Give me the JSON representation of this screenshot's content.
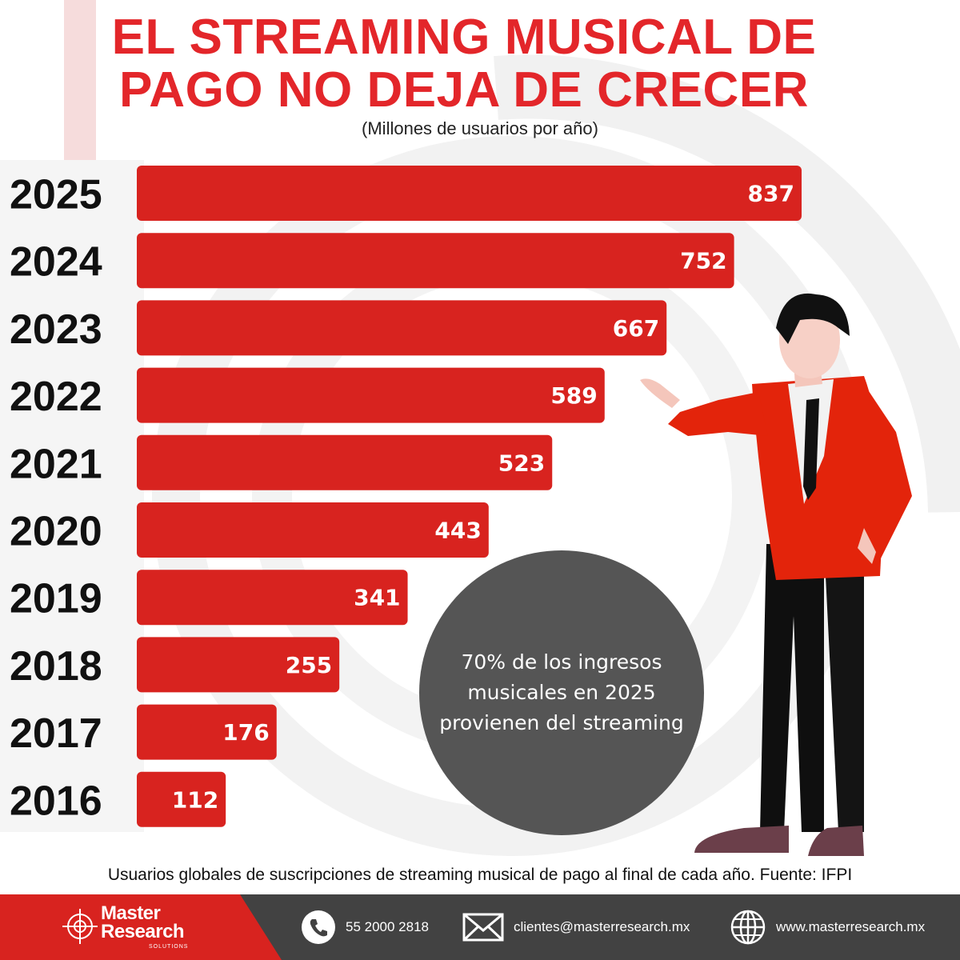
{
  "title_line1": "EL STREAMING MUSICAL DE",
  "title_line2": "PAGO NO DEJA DE CRECER",
  "subtitle": "(Millones de usuarios por año)",
  "chart_data": {
    "type": "bar",
    "orientation": "horizontal",
    "categories": [
      "2025",
      "2024",
      "2023",
      "2022",
      "2021",
      "2020",
      "2019",
      "2018",
      "2017",
      "2016"
    ],
    "values": [
      837,
      752,
      667,
      589,
      523,
      443,
      341,
      255,
      176,
      112
    ],
    "title": "EL STREAMING MUSICAL DE PAGO NO DEJA DE CRECER",
    "subtitle": "(Millones de usuarios por año)",
    "xlabel": "",
    "ylabel": "",
    "data_labels": true,
    "bar_color": "#d8231f",
    "grid": false,
    "legend": "none"
  },
  "callout": "70% de los ingresos musicales en 2025 provienen del streaming",
  "footnote": "Usuarios globales de suscripciones de streaming musical de pago al final de cada año. Fuente: IFPI",
  "footer": {
    "brand_line1": "Master",
    "brand_line2": "Research",
    "brand_sub": "SOLUTIONS",
    "phone": "55 2000 2818",
    "email": "clientes@masterresearch.mx",
    "website": "www.masterresearch.mx",
    "phone_icon": "phone-icon",
    "email_icon": "envelope-icon",
    "web_icon": "globe-icon"
  },
  "colors": {
    "accent": "#e3262a",
    "bar": "#d8231f",
    "dark_gray": "#424242",
    "circle": "#555555"
  }
}
